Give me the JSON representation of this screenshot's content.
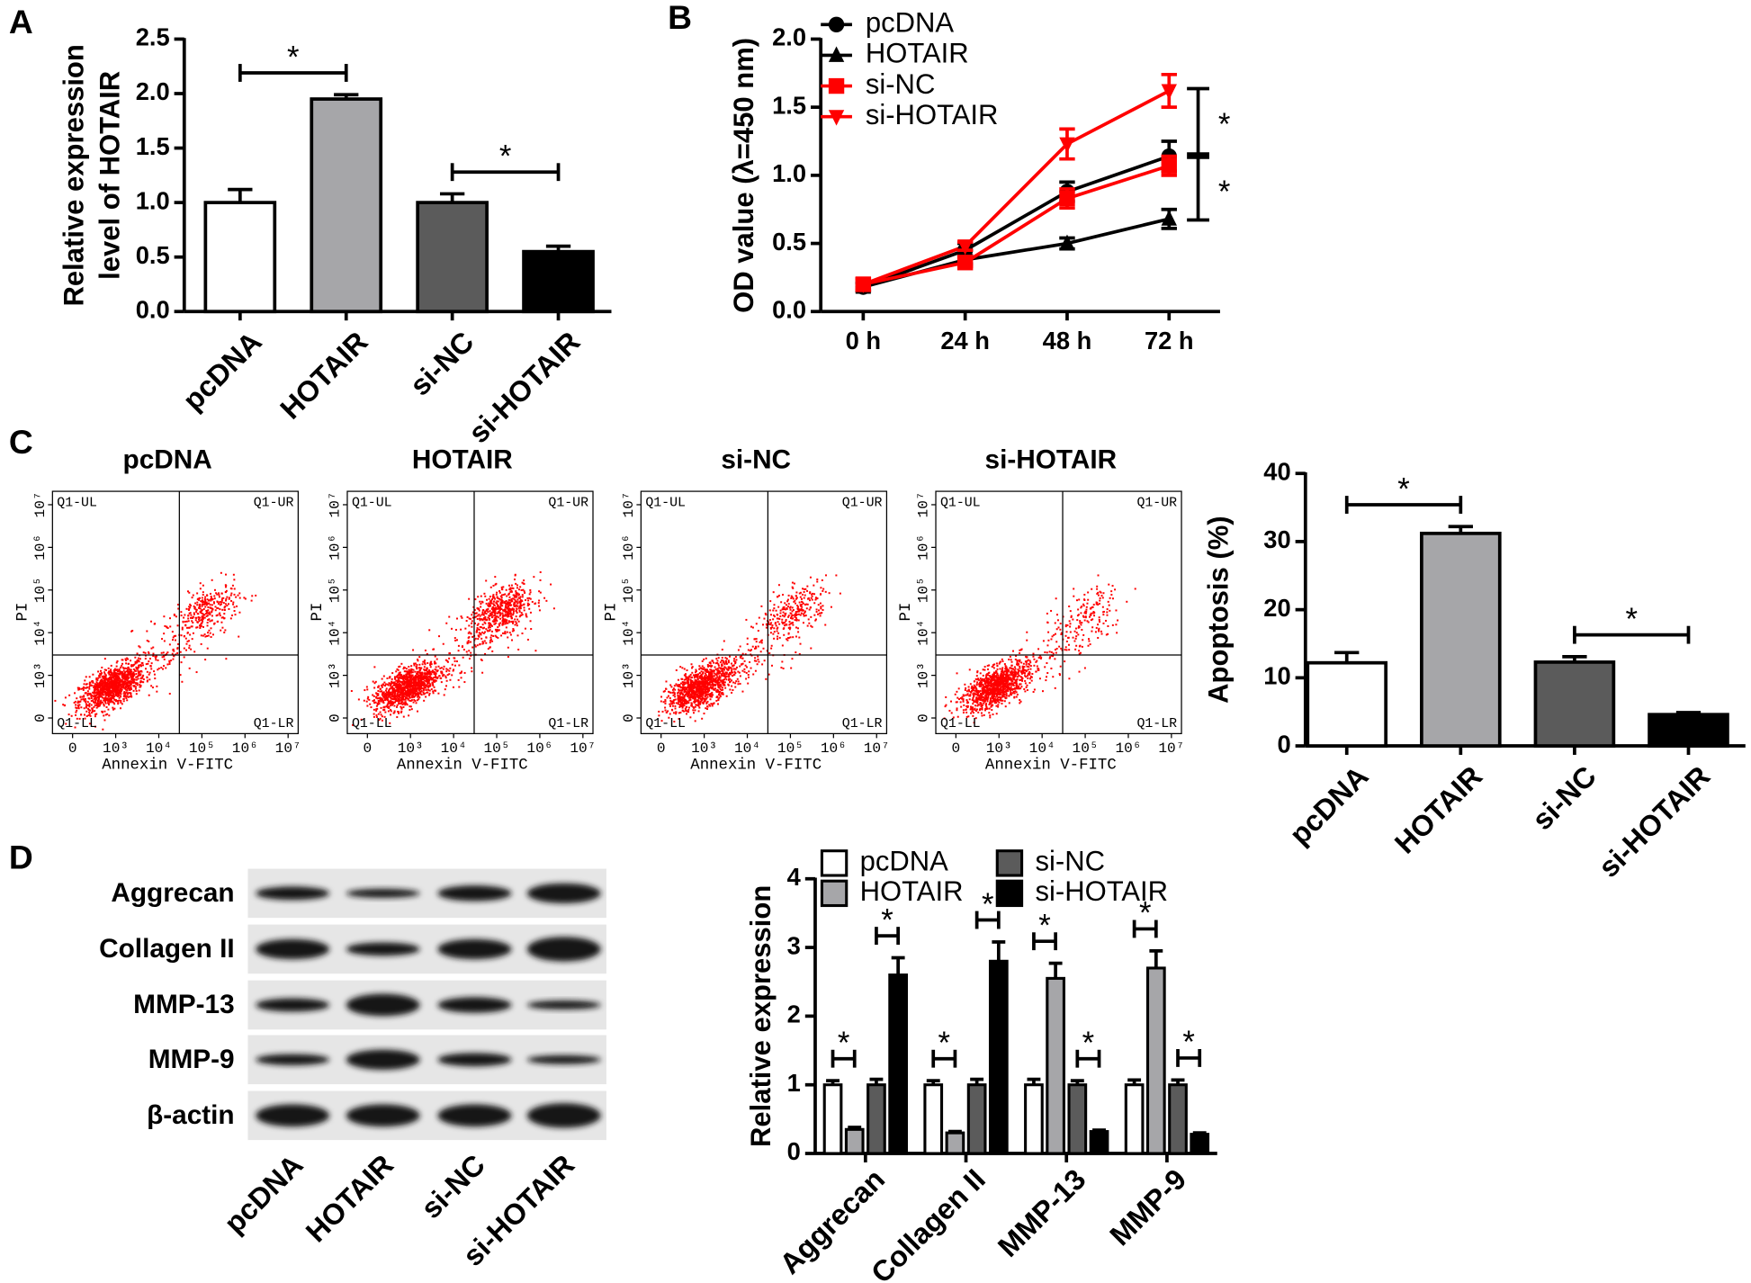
{
  "chart_data": [
    {
      "panel": "A",
      "type": "bar",
      "y_label": [
        "Relative expression",
        "level of HOTAIR"
      ],
      "categories": [
        "pcDNA",
        "HOTAIR",
        "si-NC",
        "si-HOTAIR"
      ],
      "values": [
        1.0,
        1.95,
        1.0,
        0.55
      ],
      "errors": [
        0.12,
        0.04,
        0.08,
        0.05
      ],
      "colors": [
        "#ffffff",
        "#a6a6a9",
        "#5b5b5b",
        "#000000"
      ],
      "ylim": [
        0,
        2.5
      ],
      "yticks": [
        {
          "value": 0,
          "label": "0.0"
        },
        0.5,
        {
          "value": 1,
          "label": "1.0"
        },
        1.5,
        {
          "value": 2,
          "label": "2.0"
        },
        2.5
      ],
      "annotations": [
        {
          "text": "*",
          "between": [
            0,
            1
          ]
        },
        {
          "text": "*",
          "between": [
            2,
            3
          ]
        }
      ]
    },
    {
      "panel": "B",
      "type": "line",
      "y_label": "OD value (λ=450 nm)",
      "categories": [
        "0 h",
        "24 h",
        "48 h",
        "72 h"
      ],
      "legend": "upper left",
      "series": [
        {
          "name": "pcDNA",
          "color": "#000000",
          "marker": "circle",
          "values": [
            0.18,
            0.45,
            0.88,
            1.14
          ],
          "errors": [
            0.03,
            0.05,
            0.07,
            0.11
          ]
        },
        {
          "name": "HOTAIR",
          "color": "#000000",
          "marker": "triangle-up",
          "values": [
            0.18,
            0.38,
            0.5,
            0.68
          ],
          "errors": [
            0.03,
            0.03,
            0.04,
            0.07
          ]
        },
        {
          "name": "si-NC",
          "color": "#ff0000",
          "marker": "square",
          "values": [
            0.2,
            0.36,
            0.83,
            1.07
          ],
          "errors": [
            0.04,
            0.03,
            0.07,
            0.07
          ]
        },
        {
          "name": "si-HOTAIR",
          "color": "#ff0000",
          "marker": "triangle-down",
          "values": [
            0.2,
            0.48,
            1.23,
            1.62
          ],
          "errors": [
            0.04,
            0.03,
            0.11,
            0.12
          ]
        }
      ],
      "ylim": [
        0,
        2
      ],
      "yticks": [
        {
          "value": 0,
          "label": "0.0"
        },
        0.5,
        {
          "value": 1,
          "label": "1.0"
        },
        1.5,
        {
          "value": 2,
          "label": "2.0"
        }
      ],
      "annotations": [
        {
          "text": "*",
          "between": [
            3,
            0
          ]
        },
        {
          "text": "*",
          "between": [
            0,
            1
          ]
        }
      ]
    },
    {
      "panel": "C",
      "type": "flow_cytometry",
      "titles": [
        "pcDNA",
        "HOTAIR",
        "si-NC",
        "si-HOTAIR"
      ],
      "x_label": "Annexin V-FITC",
      "y_label": "PI",
      "quadrant_labels": [
        "Q1-UL",
        "Q1-UR",
        "Q1-LL",
        "Q1-LR"
      ],
      "xscale": "log",
      "yscale": "log",
      "color": "#ff0000",
      "xlim": [
        0,
        10000000
      ],
      "ylim": [
        0,
        10000000
      ],
      "xticks": [
        0,
        {
          "value": 1000,
          "label": "10³"
        },
        {
          "value": 10000,
          "label": "10⁴"
        },
        {
          "value": 100000,
          "label": "10⁵"
        },
        {
          "value": 1000000,
          "label": "10⁶"
        },
        {
          "value": 10000000,
          "label": "10⁷"
        }
      ],
      "yticks": [
        0,
        {
          "value": 1000,
          "label": "10³"
        },
        {
          "value": 10000,
          "label": "10⁴"
        },
        {
          "value": 100000,
          "label": "10⁵"
        },
        {
          "value": 1000000,
          "label": "10⁶"
        },
        {
          "value": 10000000,
          "label": "10⁷"
        }
      ],
      "gate": [
        30000,
        3000
      ]
    },
    {
      "type": "bar",
      "y_label": "Apoptosis (%)",
      "categories": [
        "pcDNA",
        "HOTAIR",
        "si-NC",
        "si-HOTAIR"
      ],
      "values": [
        12.2,
        31.2,
        12.3,
        4.6
      ],
      "errors": [
        1.5,
        1.0,
        0.8,
        0.3
      ],
      "colors": [
        "#ffffff",
        "#a6a6a9",
        "#5b5b5b",
        "#000000"
      ],
      "ylim": [
        0,
        40
      ],
      "yticks": [
        0,
        10,
        20,
        30,
        40
      ],
      "annotations": [
        {
          "text": "*",
          "between": [
            0,
            1
          ]
        },
        {
          "text": "*",
          "between": [
            2,
            3
          ]
        }
      ]
    },
    {
      "type": "grouped_bar",
      "y_label": "Relative expression",
      "categories": [
        "Aggrecan",
        "Collagen II",
        "MMP-13",
        "MMP-9"
      ],
      "series": [
        {
          "name": "pcDNA",
          "color": "#ffffff",
          "values": [
            1.0,
            1.0,
            1.0,
            1.0
          ],
          "errors": [
            0.06,
            0.06,
            0.08,
            0.07
          ]
        },
        {
          "name": "HOTAIR",
          "color": "#a6a6a9",
          "values": [
            0.35,
            0.3,
            2.55,
            2.7
          ],
          "errors": [
            0.03,
            0.02,
            0.22,
            0.25
          ]
        },
        {
          "name": "si-NC",
          "color": "#5b5b5b",
          "values": [
            1.0,
            1.0,
            1.0,
            1.0
          ],
          "errors": [
            0.08,
            0.08,
            0.06,
            0.07
          ]
        },
        {
          "name": "si-HOTAIR",
          "color": "#000000",
          "values": [
            2.6,
            2.8,
            0.32,
            0.28
          ],
          "errors": [
            0.25,
            0.28,
            0.02,
            0.02
          ]
        }
      ],
      "ylim": [
        0,
        4
      ],
      "yticks": [
        0,
        1,
        2,
        3,
        4
      ],
      "annotations": [
        {
          "text": "*",
          "category": 0,
          "between": [
            0,
            1
          ]
        },
        {
          "text": "*",
          "category": 0,
          "between": [
            2,
            3
          ]
        },
        {
          "text": "*",
          "category": 1,
          "between": [
            0,
            1
          ]
        },
        {
          "text": "*",
          "category": 1,
          "between": [
            2,
            3
          ]
        },
        {
          "text": "*",
          "category": 2,
          "between": [
            0,
            1
          ]
        },
        {
          "text": "*",
          "category": 2,
          "between": [
            2,
            3
          ]
        },
        {
          "text": "*",
          "category": 3,
          "between": [
            0,
            1
          ]
        },
        {
          "text": "*",
          "category": 3,
          "between": [
            2,
            3
          ]
        }
      ]
    }
  ],
  "blot": {
    "panel": "D",
    "rows": [
      "Aggrecan",
      "Collagen II",
      "MMP-13",
      "MMP-9",
      "β-actin"
    ],
    "lanes": [
      "pcDNA",
      "HOTAIR",
      "si-NC",
      "si-HOTAIR"
    ]
  }
}
